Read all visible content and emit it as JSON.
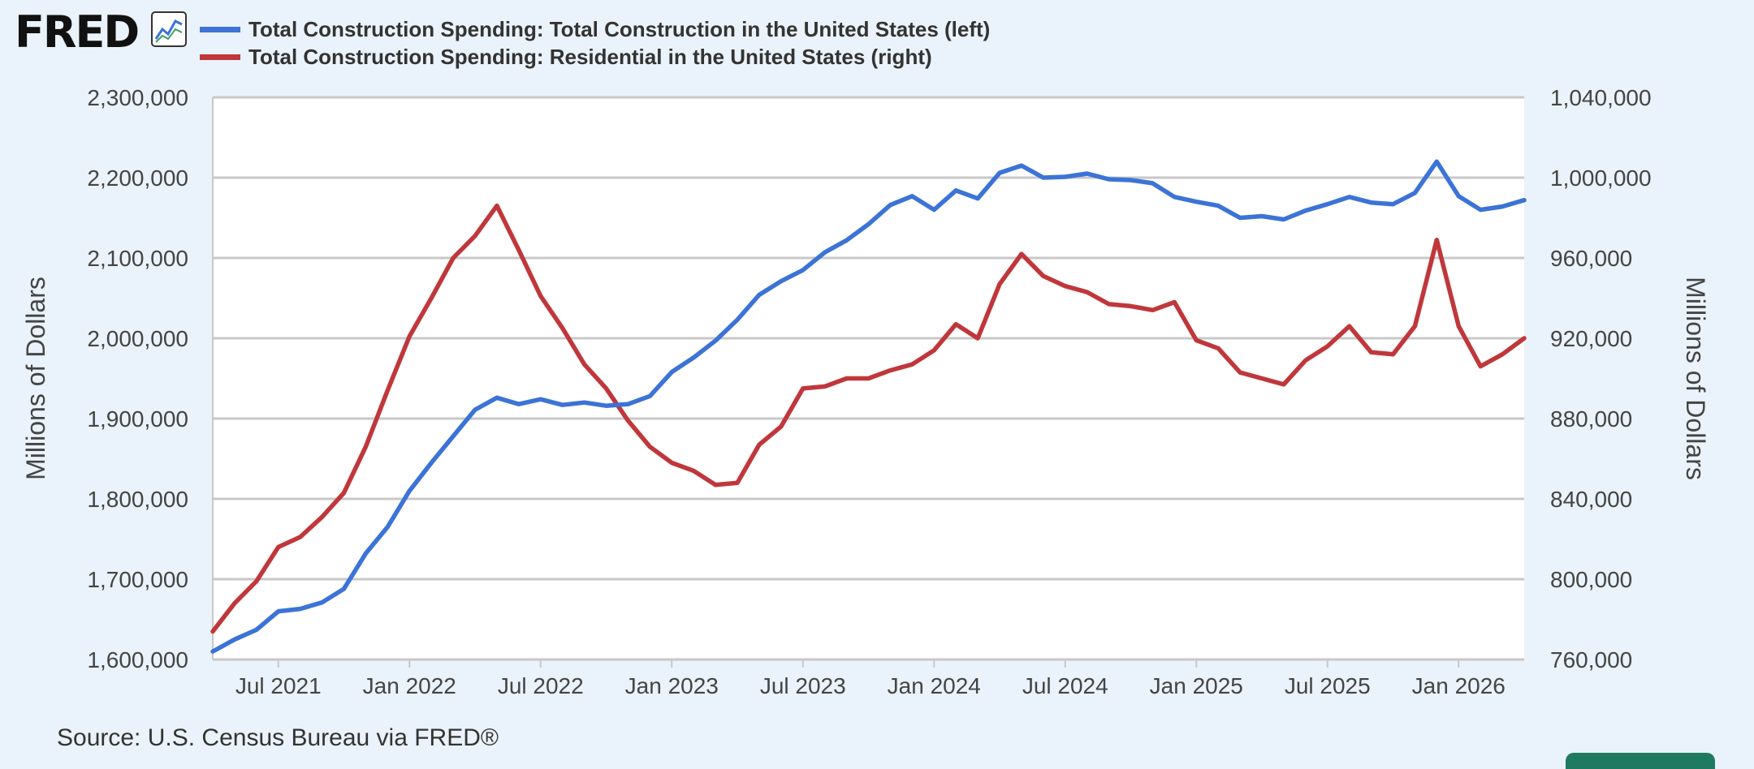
{
  "header": {
    "logo": "FRED",
    "logo_icon": "line-chart-icon"
  },
  "legend": [
    {
      "label": "Total Construction Spending: Total Construction in the United States (left)",
      "color": "#3c73d6"
    },
    {
      "label": "Total Construction Spending: Residential in the United States (right)",
      "color": "#c0373b"
    }
  ],
  "source": "Source: U.S. Census Bureau via FRED®",
  "chart_data": {
    "type": "line",
    "x": [
      "2021-04",
      "2021-05",
      "2021-06",
      "2021-07",
      "2021-08",
      "2021-09",
      "2021-10",
      "2021-11",
      "2021-12",
      "2022-01",
      "2022-02",
      "2022-03",
      "2022-04",
      "2022-05",
      "2022-06",
      "2022-07",
      "2022-08",
      "2022-09",
      "2022-10",
      "2022-11",
      "2022-12",
      "2023-01",
      "2023-02",
      "2023-03",
      "2023-04",
      "2023-05",
      "2023-06",
      "2023-07",
      "2023-08",
      "2023-09",
      "2023-10",
      "2023-11",
      "2023-12",
      "2024-01",
      "2024-02",
      "2024-03",
      "2024-04",
      "2024-05",
      "2024-06",
      "2024-07",
      "2024-08",
      "2024-09",
      "2024-10",
      "2024-11",
      "2024-12",
      "2025-01",
      "2025-02",
      "2025-03",
      "2025-04",
      "2025-05",
      "2025-06",
      "2025-07",
      "2025-08",
      "2025-09",
      "2025-10",
      "2025-11",
      "2025-12",
      "2026-01",
      "2026-02",
      "2026-03",
      "2026-04"
    ],
    "x_ticks": [
      "Jul 2021",
      "Jan 2022",
      "Jul 2022",
      "Jan 2023",
      "Jul 2023",
      "Jan 2024",
      "Jul 2024",
      "Jan 2025",
      "Jul 2025",
      "Jan 2026"
    ],
    "x_tick_dates": [
      "2021-07",
      "2022-01",
      "2022-07",
      "2023-01",
      "2023-07",
      "2024-01",
      "2024-07",
      "2025-01",
      "2025-07",
      "2026-01"
    ],
    "xlim": [
      "2021-04",
      "2026-04"
    ],
    "series": [
      {
        "name": "Total Construction Spending: Total Construction in the United States (left)",
        "axis": "left",
        "color": "#3c73d6",
        "values": [
          1610000,
          1625000,
          1637000,
          1660000,
          1663000,
          1671000,
          1688000,
          1732000,
          1765000,
          1810000,
          1845000,
          1878000,
          1911000,
          1926000,
          1918000,
          1924000,
          1917000,
          1920000,
          1916000,
          1918000,
          1928000,
          1958000,
          1976000,
          1997000,
          2023000,
          2054000,
          2071000,
          2085000,
          2107000,
          2122000,
          2142000,
          2166000,
          2177000,
          2160000,
          2184000,
          2174000,
          2206000,
          2215000,
          2200000,
          2201000,
          2205000,
          2198000,
          2197000,
          2193000,
          2176000,
          2170000,
          2165000,
          2150000,
          2152000,
          2148000,
          2159000,
          2167000,
          2176000,
          2169000,
          2167000,
          2181000,
          2220000,
          2177000,
          2160000,
          2164000,
          2172000
        ]
      },
      {
        "name": "Total Construction Spending: Residential in the United States (right)",
        "axis": "right",
        "color": "#c0373b",
        "values": [
          774000,
          788000,
          799000,
          816000,
          821000,
          831000,
          843000,
          866000,
          894000,
          921000,
          940000,
          960000,
          971000,
          986000,
          964000,
          941000,
          925000,
          907000,
          895000,
          879000,
          866000,
          858000,
          854000,
          847000,
          848000,
          867000,
          876000,
          895000,
          896000,
          900000,
          900000,
          904000,
          907000,
          914000,
          927000,
          920000,
          947000,
          962000,
          951000,
          946000,
          943000,
          937000,
          936000,
          934000,
          938000,
          919000,
          915000,
          903000,
          900000,
          897000,
          909000,
          916000,
          926000,
          913000,
          912000,
          926000,
          969000,
          926000,
          906000,
          912000,
          920000
        ]
      }
    ],
    "left_axis": {
      "label": "Millions of Dollars",
      "ylim": [
        1600000,
        2300000
      ],
      "ticks": [
        "1,600,000",
        "1,700,000",
        "1,800,000",
        "1,900,000",
        "2,000,000",
        "2,100,000",
        "2,200,000",
        "2,300,000"
      ],
      "tick_values": [
        1600000,
        1700000,
        1800000,
        1900000,
        2000000,
        2100000,
        2200000,
        2300000
      ]
    },
    "right_axis": {
      "label": "Millions of Dollars",
      "ylim": [
        760000,
        1040000
      ],
      "ticks": [
        "760,000",
        "800,000",
        "840,000",
        "880,000",
        "920,000",
        "960,000",
        "1,000,000",
        "1,040,000"
      ],
      "tick_values": [
        760000,
        800000,
        840000,
        880000,
        920000,
        960000,
        1000000,
        1040000
      ]
    },
    "grid": true,
    "legend_position": "top-left"
  }
}
